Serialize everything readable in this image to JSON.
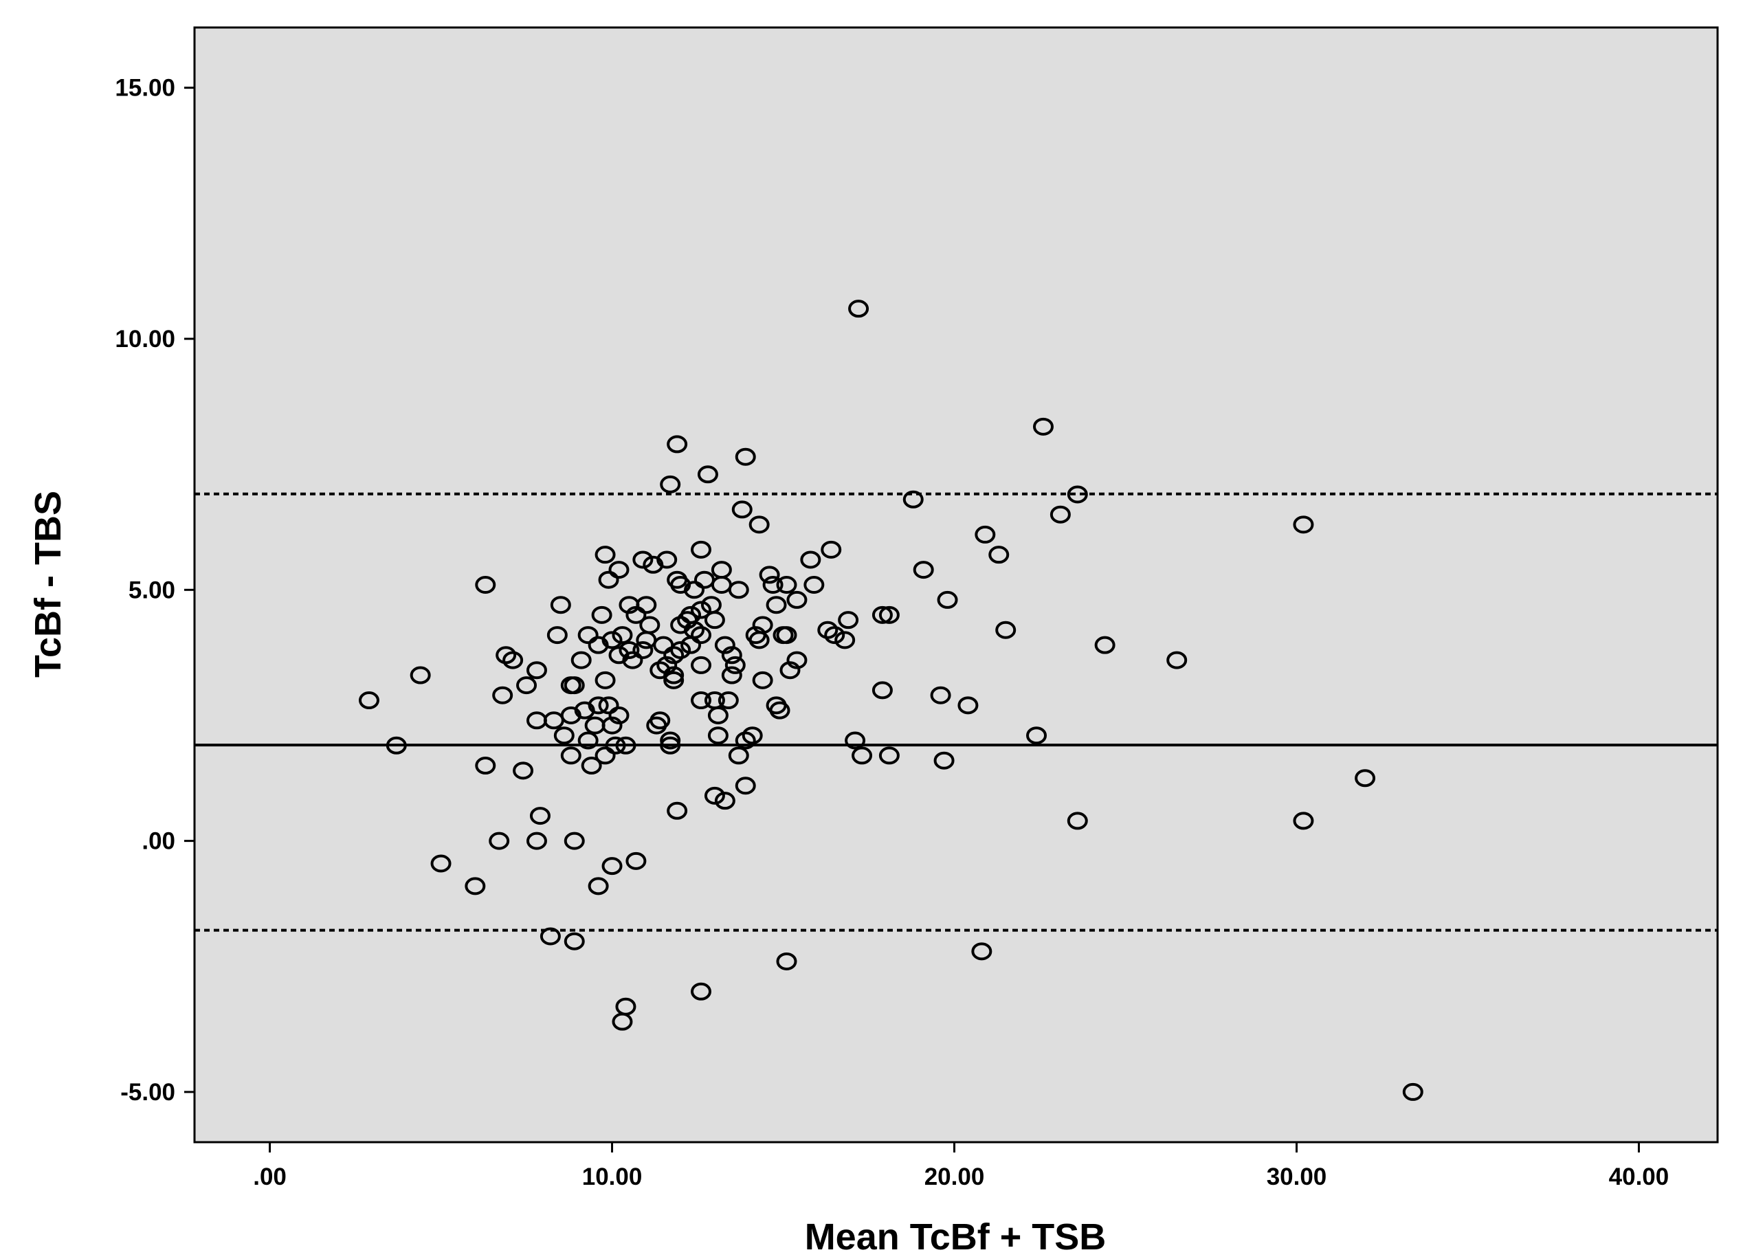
{
  "chart_data": {
    "type": "scatter",
    "title": "",
    "xlabel": "Mean TcBf + TSB",
    "ylabel": "TcBf - TBS",
    "xlim": [
      -2.2,
      42.3
    ],
    "ylim": [
      -6.0,
      16.2
    ],
    "x_ticks": [
      0,
      10,
      20,
      30,
      40
    ],
    "x_tick_labels": [
      ".00",
      "10.00",
      "20.00",
      "30.00",
      "40.00"
    ],
    "y_ticks": [
      -5,
      0,
      5,
      10,
      15
    ],
    "y_tick_labels": [
      "-5.00",
      ".00",
      "5.00",
      "10.00",
      "15.00"
    ],
    "grid": false,
    "background_color": "#dedede",
    "marker": "open-circle",
    "reference_lines": [
      {
        "name": "mean difference",
        "y": 1.91,
        "style": "solid"
      },
      {
        "name": "upper limit of agreement",
        "y": 6.91,
        "style": "dotted"
      },
      {
        "name": "lower limit of agreement",
        "y": -1.78,
        "style": "dotted"
      }
    ],
    "points": [
      [
        17.2,
        10.6
      ],
      [
        22.6,
        8.25
      ],
      [
        11.9,
        7.9
      ],
      [
        13.9,
        7.65
      ],
      [
        12.8,
        7.3
      ],
      [
        11.7,
        7.1
      ],
      [
        23.6,
        6.9
      ],
      [
        18.8,
        6.8
      ],
      [
        13.8,
        6.6
      ],
      [
        23.1,
        6.5
      ],
      [
        14.3,
        6.3
      ],
      [
        30.2,
        6.3
      ],
      [
        20.9,
        6.1
      ],
      [
        12.6,
        5.8
      ],
      [
        16.4,
        5.8
      ],
      [
        21.3,
        5.7
      ],
      [
        9.8,
        5.7
      ],
      [
        10.9,
        5.6
      ],
      [
        11.6,
        5.6
      ],
      [
        15.8,
        5.6
      ],
      [
        11.2,
        5.5
      ],
      [
        19.1,
        5.4
      ],
      [
        13.2,
        5.4
      ],
      [
        10.2,
        5.4
      ],
      [
        14.6,
        5.3
      ],
      [
        9.9,
        5.2
      ],
      [
        12.7,
        5.2
      ],
      [
        11.9,
        5.2
      ],
      [
        6.3,
        5.1
      ],
      [
        15.1,
        5.1
      ],
      [
        13.2,
        5.1
      ],
      [
        15.9,
        5.1
      ],
      [
        14.7,
        5.1
      ],
      [
        12.0,
        5.1
      ],
      [
        12.4,
        5.0
      ],
      [
        13.7,
        5.0
      ],
      [
        15.4,
        4.8
      ],
      [
        19.8,
        4.8
      ],
      [
        12.9,
        4.7
      ],
      [
        8.5,
        4.7
      ],
      [
        10.5,
        4.7
      ],
      [
        14.8,
        4.7
      ],
      [
        11.0,
        4.7
      ],
      [
        12.6,
        4.6
      ],
      [
        12.3,
        4.5
      ],
      [
        17.9,
        4.5
      ],
      [
        18.1,
        4.5
      ],
      [
        9.7,
        4.5
      ],
      [
        10.7,
        4.5
      ],
      [
        13.0,
        4.4
      ],
      [
        12.2,
        4.4
      ],
      [
        16.9,
        4.4
      ],
      [
        11.1,
        4.3
      ],
      [
        12.0,
        4.3
      ],
      [
        14.4,
        4.3
      ],
      [
        12.4,
        4.2
      ],
      [
        16.3,
        4.2
      ],
      [
        21.5,
        4.2
      ],
      [
        16.5,
        4.1
      ],
      [
        8.4,
        4.1
      ],
      [
        10.3,
        4.1
      ],
      [
        12.6,
        4.1
      ],
      [
        15.0,
        4.1
      ],
      [
        15.1,
        4.1
      ],
      [
        14.2,
        4.1
      ],
      [
        9.3,
        4.1
      ],
      [
        11.0,
        4.0
      ],
      [
        14.3,
        4.0
      ],
      [
        10.0,
        4.0
      ],
      [
        16.8,
        4.0
      ],
      [
        13.3,
        3.9
      ],
      [
        12.3,
        3.9
      ],
      [
        9.6,
        3.9
      ],
      [
        24.4,
        3.9
      ],
      [
        10.9,
        3.8
      ],
      [
        11.5,
        3.9
      ],
      [
        10.5,
        3.8
      ],
      [
        12.0,
        3.8
      ],
      [
        11.8,
        3.7
      ],
      [
        13.5,
        3.7
      ],
      [
        10.2,
        3.7
      ],
      [
        6.9,
        3.7
      ],
      [
        7.1,
        3.6
      ],
      [
        26.5,
        3.6
      ],
      [
        15.4,
        3.6
      ],
      [
        10.6,
        3.6
      ],
      [
        11.6,
        3.5
      ],
      [
        9.1,
        3.6
      ],
      [
        12.6,
        3.5
      ],
      [
        13.6,
        3.5
      ],
      [
        11.4,
        3.4
      ],
      [
        7.8,
        3.4
      ],
      [
        4.4,
        3.3
      ],
      [
        15.2,
        3.4
      ],
      [
        13.5,
        3.3
      ],
      [
        11.8,
        3.3
      ],
      [
        14.4,
        3.2
      ],
      [
        11.8,
        3.2
      ],
      [
        8.9,
        3.1
      ],
      [
        7.5,
        3.1
      ],
      [
        8.8,
        3.1
      ],
      [
        9.8,
        3.2
      ],
      [
        17.9,
        3.0
      ],
      [
        6.8,
        2.9
      ],
      [
        19.6,
        2.9
      ],
      [
        2.9,
        2.8
      ],
      [
        12.6,
        2.8
      ],
      [
        13.0,
        2.8
      ],
      [
        13.4,
        2.8
      ],
      [
        9.6,
        2.7
      ],
      [
        9.9,
        2.7
      ],
      [
        14.8,
        2.7
      ],
      [
        20.4,
        2.7
      ],
      [
        9.2,
        2.6
      ],
      [
        14.9,
        2.6
      ],
      [
        8.8,
        2.5
      ],
      [
        10.2,
        2.5
      ],
      [
        13.1,
        2.5
      ],
      [
        11.4,
        2.4
      ],
      [
        7.8,
        2.4
      ],
      [
        8.3,
        2.4
      ],
      [
        9.5,
        2.3
      ],
      [
        10.0,
        2.3
      ],
      [
        11.3,
        2.3
      ],
      [
        8.6,
        2.1
      ],
      [
        13.1,
        2.1
      ],
      [
        22.4,
        2.1
      ],
      [
        11.7,
        2.0
      ],
      [
        9.3,
        2.0
      ],
      [
        14.1,
        2.1
      ],
      [
        17.1,
        2.0
      ],
      [
        13.9,
        2.0
      ],
      [
        3.7,
        1.9
      ],
      [
        10.1,
        1.9
      ],
      [
        11.7,
        1.9
      ],
      [
        10.4,
        1.9
      ],
      [
        8.8,
        1.7
      ],
      [
        9.8,
        1.7
      ],
      [
        13.7,
        1.7
      ],
      [
        17.3,
        1.7
      ],
      [
        18.1,
        1.7
      ],
      [
        19.7,
        1.6
      ],
      [
        6.3,
        1.5
      ],
      [
        9.4,
        1.5
      ],
      [
        7.4,
        1.4
      ],
      [
        32.0,
        1.25
      ],
      [
        13.9,
        1.1
      ],
      [
        13.0,
        0.9
      ],
      [
        13.3,
        0.8
      ],
      [
        11.9,
        0.6
      ],
      [
        7.9,
        0.5
      ],
      [
        23.6,
        0.4
      ],
      [
        30.2,
        0.4
      ],
      [
        6.7,
        0.0
      ],
      [
        7.8,
        0.0
      ],
      [
        8.9,
        0.0
      ],
      [
        10.7,
        -0.4
      ],
      [
        5.0,
        -0.45
      ],
      [
        10.0,
        -0.5
      ],
      [
        6.0,
        -0.9
      ],
      [
        9.6,
        -0.9
      ],
      [
        8.2,
        -1.9
      ],
      [
        8.9,
        -2.0
      ],
      [
        20.8,
        -2.2
      ],
      [
        15.1,
        -2.4
      ],
      [
        12.6,
        -3.0
      ],
      [
        10.4,
        -3.3
      ],
      [
        10.3,
        -3.6
      ],
      [
        33.4,
        -5.0
      ]
    ]
  }
}
